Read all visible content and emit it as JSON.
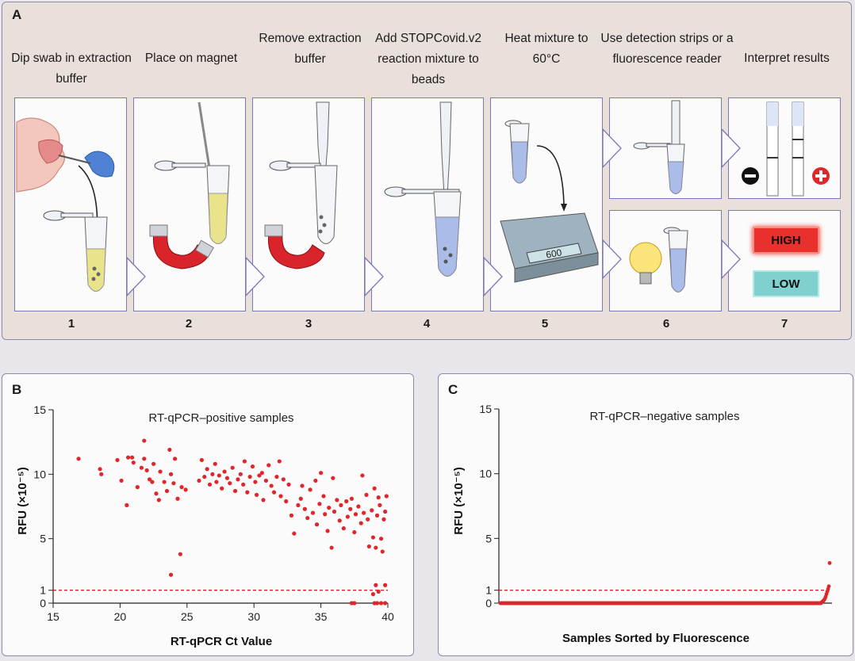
{
  "panel_a": {
    "label": "A",
    "steps": [
      {
        "title": "Dip swab in extraction buffer",
        "num": "1"
      },
      {
        "title": "Place on magnet",
        "num": "2"
      },
      {
        "title": "Remove extraction buffer",
        "num": "3"
      },
      {
        "title": "Add STOPCovid.v2 reaction mixture to beads",
        "num": "4"
      },
      {
        "title": "Heat mixture to 60°C",
        "num": "5"
      },
      {
        "title": "Use detection strips or a fluorescence reader",
        "num": "6"
      },
      {
        "title": "Interpret results",
        "num": "7"
      }
    ],
    "heater_display": "600",
    "result_high": "HIGH",
    "result_low": "LOW",
    "colors": {
      "tube_liquid": "#e9e48c",
      "mixture": "#a9bde8",
      "magnet": "#d8242a",
      "high": "#e8302c",
      "low": "#7fd0cf"
    }
  },
  "chart_data": [
    {
      "panel_label": "B",
      "type": "scatter",
      "title": "RT-qPCR–positive samples",
      "xlabel": "RT-qPCR Ct Value",
      "ylabel": "RFU (×10⁻⁵)",
      "xlim": [
        15,
        40
      ],
      "ylim": [
        0,
        15
      ],
      "xticks": [
        "15",
        "20",
        "25",
        "30",
        "35",
        "40"
      ],
      "yticks": [
        "0",
        "1",
        "5",
        "10",
        "15"
      ],
      "threshold": 1,
      "color": "#e0262b",
      "points": [
        [
          16.9,
          11.2
        ],
        [
          18.5,
          10.4
        ],
        [
          18.6,
          10.0
        ],
        [
          19.8,
          11.1
        ],
        [
          20.1,
          9.5
        ],
        [
          20.5,
          7.6
        ],
        [
          20.6,
          11.3
        ],
        [
          20.9,
          11.3
        ],
        [
          21.0,
          10.9
        ],
        [
          21.3,
          9.0
        ],
        [
          21.6,
          10.5
        ],
        [
          21.8,
          12.6
        ],
        [
          21.8,
          11.2
        ],
        [
          22.0,
          10.3
        ],
        [
          22.2,
          9.6
        ],
        [
          22.4,
          9.4
        ],
        [
          22.5,
          10.8
        ],
        [
          22.7,
          8.5
        ],
        [
          22.9,
          8.0
        ],
        [
          23.0,
          10.2
        ],
        [
          23.3,
          9.4
        ],
        [
          23.5,
          8.7
        ],
        [
          23.7,
          11.9
        ],
        [
          23.8,
          10.0
        ],
        [
          24.0,
          9.3
        ],
        [
          24.1,
          11.2
        ],
        [
          24.3,
          8.1
        ],
        [
          24.6,
          9.0
        ],
        [
          24.9,
          8.8
        ],
        [
          23.8,
          2.2
        ],
        [
          24.5,
          3.8
        ],
        [
          25.9,
          9.5
        ],
        [
          26.1,
          11.1
        ],
        [
          26.3,
          9.8
        ],
        [
          26.5,
          10.4
        ],
        [
          26.7,
          9.2
        ],
        [
          26.9,
          10.0
        ],
        [
          27.1,
          10.8
        ],
        [
          27.2,
          9.4
        ],
        [
          27.4,
          9.9
        ],
        [
          27.6,
          8.9
        ],
        [
          27.8,
          10.2
        ],
        [
          28.0,
          9.7
        ],
        [
          28.2,
          9.3
        ],
        [
          28.4,
          10.5
        ],
        [
          28.6,
          8.7
        ],
        [
          28.8,
          9.6
        ],
        [
          29.0,
          10.0
        ],
        [
          29.2,
          9.2
        ],
        [
          29.3,
          11.0
        ],
        [
          29.5,
          8.6
        ],
        [
          29.7,
          9.8
        ],
        [
          29.9,
          10.6
        ],
        [
          30.1,
          9.4
        ],
        [
          30.2,
          8.4
        ],
        [
          30.4,
          9.9
        ],
        [
          30.6,
          10.1
        ],
        [
          30.7,
          8.0
        ],
        [
          30.9,
          9.5
        ],
        [
          31.1,
          10.7
        ],
        [
          31.3,
          9.1
        ],
        [
          31.5,
          8.6
        ],
        [
          31.7,
          9.8
        ],
        [
          31.9,
          11.0
        ],
        [
          32.0,
          8.3
        ],
        [
          32.2,
          9.6
        ],
        [
          32.4,
          7.9
        ],
        [
          32.6,
          9.2
        ],
        [
          32.8,
          6.8
        ],
        [
          33.0,
          5.4
        ],
        [
          33.3,
          7.6
        ],
        [
          33.5,
          8.1
        ],
        [
          33.6,
          9.1
        ],
        [
          33.8,
          7.3
        ],
        [
          34.0,
          6.6
        ],
        [
          34.2,
          8.8
        ],
        [
          34.4,
          7.0
        ],
        [
          34.6,
          9.5
        ],
        [
          34.7,
          6.1
        ],
        [
          34.9,
          7.7
        ],
        [
          35.0,
          10.1
        ],
        [
          35.2,
          8.3
        ],
        [
          35.3,
          6.9
        ],
        [
          35.5,
          5.6
        ],
        [
          35.6,
          7.4
        ],
        [
          35.8,
          4.3
        ],
        [
          35.9,
          9.7
        ],
        [
          36.0,
          7.1
        ],
        [
          36.2,
          8.0
        ],
        [
          36.4,
          6.4
        ],
        [
          36.5,
          7.6
        ],
        [
          36.7,
          5.8
        ],
        [
          36.9,
          7.9
        ],
        [
          37.0,
          6.7
        ],
        [
          37.2,
          7.3
        ],
        [
          37.3,
          8.1
        ],
        [
          37.5,
          5.5
        ],
        [
          37.6,
          6.9
        ],
        [
          37.8,
          7.5
        ],
        [
          38.0,
          6.2
        ],
        [
          38.1,
          9.9
        ],
        [
          38.2,
          7.0
        ],
        [
          38.4,
          8.4
        ],
        [
          38.5,
          6.5
        ],
        [
          38.6,
          4.4
        ],
        [
          38.8,
          7.2
        ],
        [
          38.9,
          5.1
        ],
        [
          39.0,
          8.9
        ],
        [
          39.1,
          4.3
        ],
        [
          39.2,
          6.8
        ],
        [
          39.3,
          8.2
        ],
        [
          39.4,
          7.6
        ],
        [
          39.5,
          5.0
        ],
        [
          39.6,
          4.0
        ],
        [
          39.7,
          6.5
        ],
        [
          39.8,
          7.1
        ],
        [
          39.9,
          8.3
        ],
        [
          39.1,
          1.4
        ],
        [
          39.3,
          0.9
        ],
        [
          39.8,
          1.4
        ],
        [
          38.9,
          0.7
        ],
        [
          37.3,
          0.0
        ],
        [
          37.5,
          0.0
        ],
        [
          39.0,
          0.0
        ],
        [
          39.2,
          0.0
        ],
        [
          39.5,
          0.0
        ],
        [
          39.8,
          0.0
        ]
      ]
    },
    {
      "panel_label": "C",
      "type": "scatter",
      "title": "RT-qPCR–negative samples",
      "xlabel": "Samples Sorted by Fluorescence",
      "ylabel": "RFU (×10⁻⁵)",
      "ylim": [
        0,
        15
      ],
      "yticks": [
        "0",
        "1",
        "5",
        "10",
        "15"
      ],
      "threshold": 1,
      "color": "#e0262b",
      "n_samples": 420,
      "tail_values": [
        0.08,
        0.12,
        0.18,
        0.25,
        0.35,
        0.5,
        0.7,
        0.9,
        1.1,
        1.3,
        3.1
      ]
    }
  ]
}
